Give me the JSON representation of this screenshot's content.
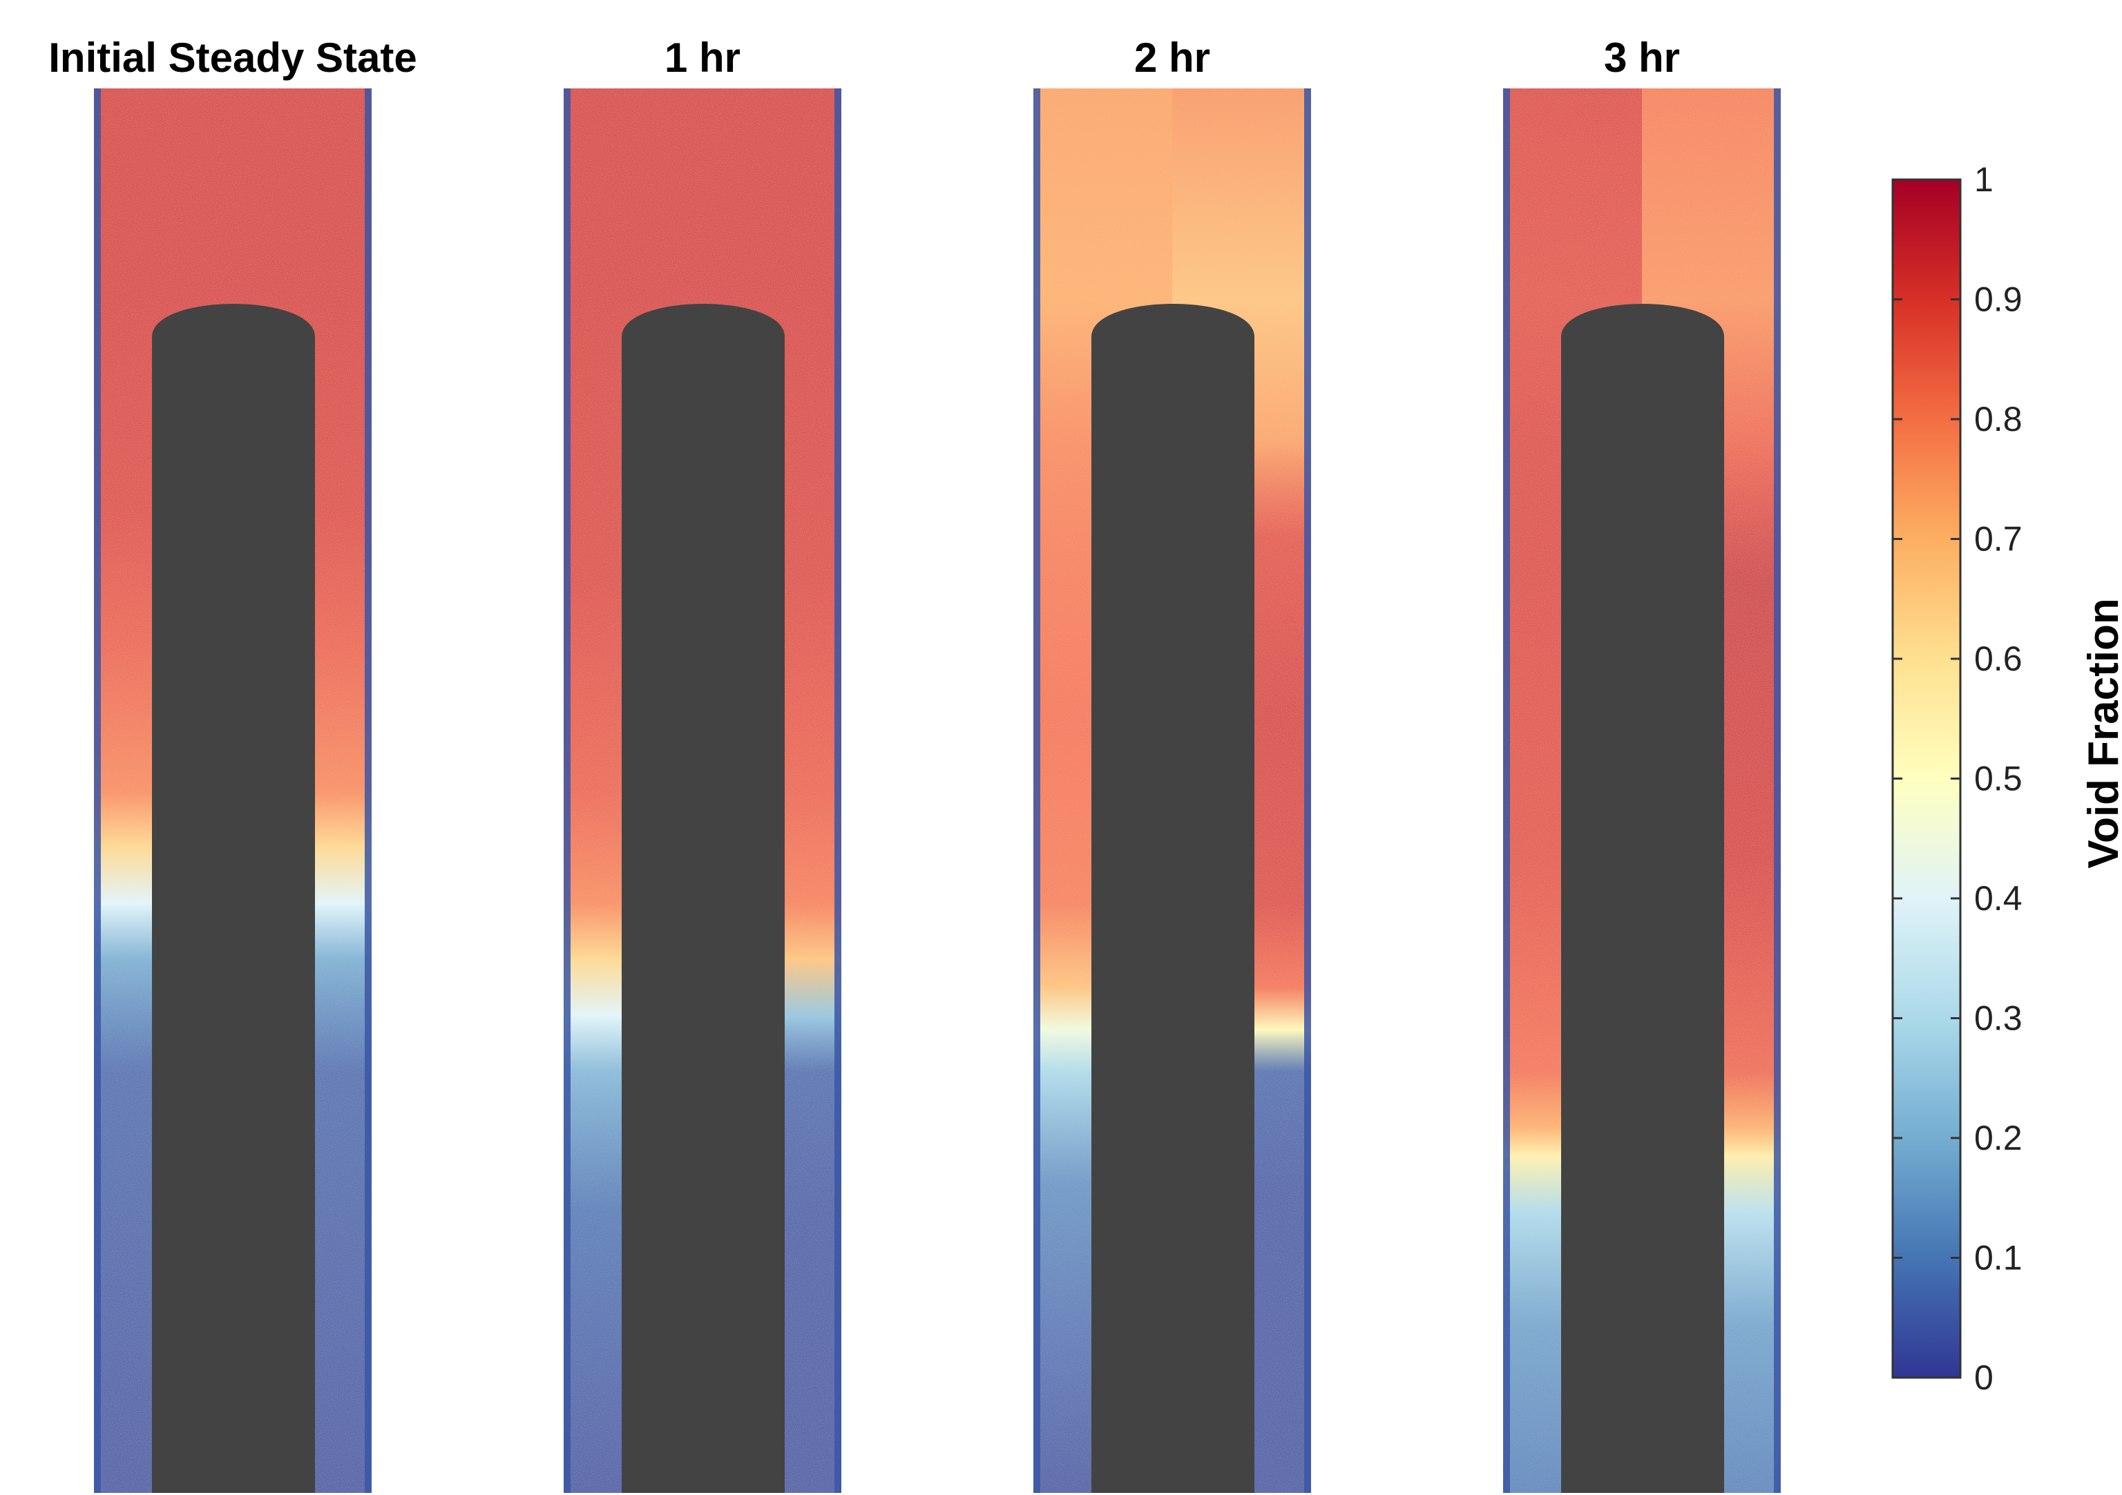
{
  "chart_data": {
    "type": "heatmap",
    "panels": [
      {
        "title": "Initial Steady State",
        "profile": [
          [
            0.0,
            0.9,
            0.9
          ],
          [
            0.15,
            0.9,
            0.9
          ],
          [
            0.3,
            0.88,
            0.88
          ],
          [
            0.4,
            0.83,
            0.83
          ],
          [
            0.5,
            0.76,
            0.76
          ],
          [
            0.54,
            0.62,
            0.62
          ],
          [
            0.58,
            0.4,
            0.4
          ],
          [
            0.62,
            0.2,
            0.2
          ],
          [
            0.7,
            0.08,
            0.08
          ],
          [
            1.0,
            0.04,
            0.04
          ]
        ]
      },
      {
        "title": "1 hr",
        "profile": [
          [
            0.0,
            0.9,
            0.9
          ],
          [
            0.15,
            0.9,
            0.9
          ],
          [
            0.35,
            0.88,
            0.88
          ],
          [
            0.5,
            0.83,
            0.83
          ],
          [
            0.58,
            0.76,
            0.78
          ],
          [
            0.62,
            0.62,
            0.66
          ],
          [
            0.66,
            0.4,
            0.25
          ],
          [
            0.7,
            0.22,
            0.08
          ],
          [
            0.8,
            0.1,
            0.05
          ],
          [
            1.0,
            0.04,
            0.04
          ]
        ]
      },
      {
        "title": "2 hr",
        "profile": [
          [
            0.0,
            0.72,
            0.74
          ],
          [
            0.15,
            0.7,
            0.66
          ],
          [
            0.25,
            0.76,
            0.72
          ],
          [
            0.32,
            0.78,
            0.86
          ],
          [
            0.45,
            0.8,
            0.9
          ],
          [
            0.58,
            0.78,
            0.88
          ],
          [
            0.64,
            0.66,
            0.8
          ],
          [
            0.67,
            0.45,
            0.52
          ],
          [
            0.7,
            0.3,
            0.08
          ],
          [
            0.78,
            0.15,
            0.05
          ],
          [
            1.0,
            0.04,
            0.04
          ]
        ]
      },
      {
        "title": "3 hr",
        "profile": [
          [
            0.0,
            0.88,
            0.78
          ],
          [
            0.15,
            0.86,
            0.74
          ],
          [
            0.25,
            0.88,
            0.82
          ],
          [
            0.35,
            0.88,
            0.92
          ],
          [
            0.55,
            0.86,
            0.9
          ],
          [
            0.7,
            0.8,
            0.82
          ],
          [
            0.74,
            0.7,
            0.7
          ],
          [
            0.76,
            0.55,
            0.56
          ],
          [
            0.8,
            0.3,
            0.32
          ],
          [
            0.88,
            0.18,
            0.18
          ],
          [
            1.0,
            0.12,
            0.12
          ]
        ]
      }
    ],
    "colorbar": {
      "label": "Void Fraction",
      "min": 0,
      "max": 1,
      "ticks": [
        "0",
        "0.1",
        "0.2",
        "0.3",
        "0.4",
        "0.5",
        "0.6",
        "0.7",
        "0.8",
        "0.9",
        "1"
      ],
      "colormap": [
        "#313695",
        "#4575b4",
        "#74add1",
        "#abd9e9",
        "#e0f3f8",
        "#ffffbf",
        "#fee090",
        "#fdae61",
        "#f46d43",
        "#d73027",
        "#a50026"
      ]
    },
    "obstacle_color": "#434343"
  }
}
